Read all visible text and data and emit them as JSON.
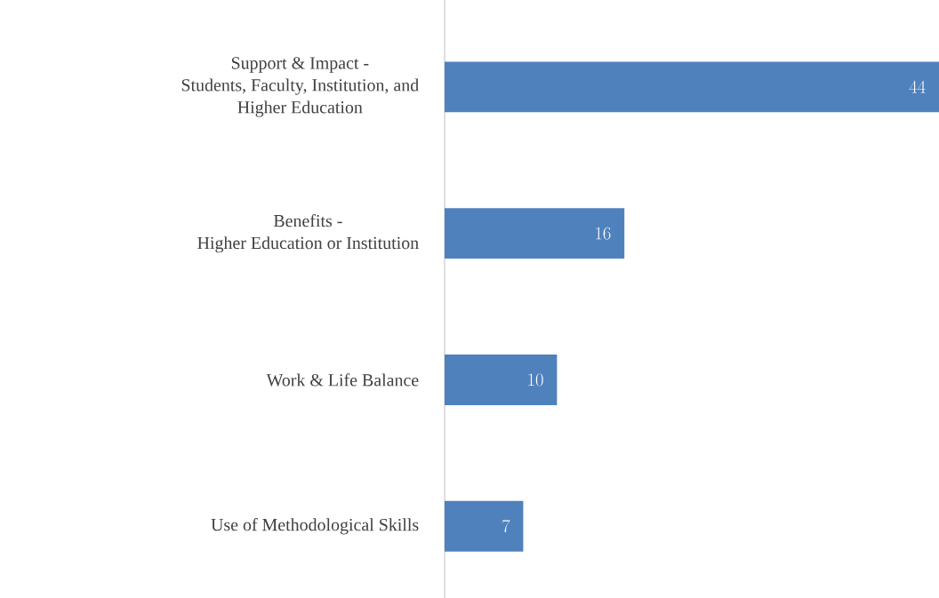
{
  "chart_data": {
    "type": "bar",
    "orientation": "horizontal",
    "categories": [
      "Support & Impact -\nStudents, Faculty, Institution, and\nHigher Education",
      "Benefits -\nHigher Education or Institution",
      "Work & Life Balance",
      "Use of Methodological Skills"
    ],
    "values": [
      44,
      16,
      10,
      7
    ],
    "color": "#4f81bd",
    "data_labels": true
  }
}
